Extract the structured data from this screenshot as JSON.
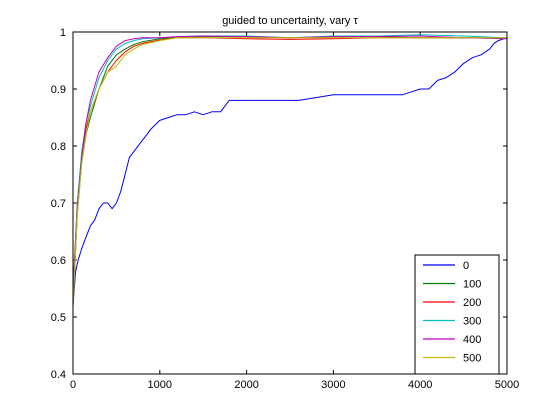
{
  "chart_data": {
    "type": "line",
    "title": "guided to uncertainty, vary τ",
    "xlabel": "",
    "ylabel": "",
    "xlim": [
      0,
      5000
    ],
    "ylim": [
      0.4,
      1.0
    ],
    "xticks": [
      0,
      1000,
      2000,
      3000,
      4000,
      5000
    ],
    "yticks": [
      0.4,
      0.5,
      0.6,
      0.7,
      0.8,
      0.9,
      1.0
    ],
    "xtick_labels": [
      "0",
      "1000",
      "2000",
      "3000",
      "4000",
      "5000"
    ],
    "ytick_labels": [
      "0.4",
      "0.5",
      "0.6",
      "0.7",
      "0.8",
      "0.9",
      "1"
    ],
    "grid": false,
    "legend_position": "bottom-right",
    "series": [
      {
        "name": "0",
        "color": "#0000ff",
        "x": [
          0,
          30,
          60,
          100,
          150,
          200,
          250,
          300,
          350,
          400,
          450,
          500,
          550,
          600,
          650,
          700,
          800,
          900,
          1000,
          1100,
          1200,
          1300,
          1400,
          1500,
          1600,
          1700,
          1800,
          2000,
          2200,
          2400,
          2600,
          2800,
          3000,
          3200,
          3400,
          3600,
          3800,
          3900,
          4000,
          4100,
          4200,
          4300,
          4400,
          4500,
          4600,
          4700,
          4800,
          4850,
          4900,
          5000
        ],
        "y": [
          0.52,
          0.58,
          0.6,
          0.62,
          0.64,
          0.66,
          0.67,
          0.69,
          0.7,
          0.7,
          0.69,
          0.7,
          0.72,
          0.75,
          0.78,
          0.79,
          0.81,
          0.83,
          0.845,
          0.85,
          0.855,
          0.855,
          0.86,
          0.855,
          0.86,
          0.86,
          0.88,
          0.88,
          0.88,
          0.88,
          0.88,
          0.885,
          0.89,
          0.89,
          0.89,
          0.89,
          0.89,
          0.895,
          0.9,
          0.9,
          0.915,
          0.92,
          0.93,
          0.945,
          0.955,
          0.96,
          0.97,
          0.98,
          0.985,
          0.99
        ]
      },
      {
        "name": "100",
        "color": "#008000",
        "x": [
          0,
          50,
          100,
          150,
          200,
          300,
          400,
          500,
          600,
          700,
          800,
          1000,
          1200,
          1500,
          2000,
          2500,
          3000,
          3500,
          4000,
          4500,
          5000
        ],
        "y": [
          0.52,
          0.68,
          0.77,
          0.82,
          0.85,
          0.9,
          0.94,
          0.96,
          0.97,
          0.978,
          0.983,
          0.988,
          0.99,
          0.992,
          0.992,
          0.99,
          0.992,
          0.992,
          0.99,
          0.99,
          0.99
        ]
      },
      {
        "name": "200",
        "color": "#ff0000",
        "x": [
          0,
          50,
          100,
          150,
          200,
          300,
          400,
          500,
          600,
          700,
          800,
          1000,
          1200,
          1500,
          2000,
          2500,
          3000,
          3500,
          4000,
          4500,
          5000
        ],
        "y": [
          0.55,
          0.7,
          0.78,
          0.83,
          0.86,
          0.9,
          0.93,
          0.95,
          0.965,
          0.975,
          0.98,
          0.986,
          0.99,
          0.99,
          0.988,
          0.987,
          0.988,
          0.99,
          0.99,
          0.99,
          0.99
        ]
      },
      {
        "name": "300",
        "color": "#00bfbf",
        "x": [
          0,
          50,
          100,
          150,
          200,
          300,
          400,
          500,
          600,
          700,
          800,
          1000,
          1200,
          1500,
          2000,
          2500,
          3000,
          3500,
          4000,
          4500,
          5000
        ],
        "y": [
          0.53,
          0.7,
          0.79,
          0.84,
          0.87,
          0.92,
          0.95,
          0.97,
          0.98,
          0.985,
          0.988,
          0.99,
          0.992,
          0.993,
          0.993,
          0.99,
          0.993,
          0.993,
          0.995,
          0.993,
          0.99
        ]
      },
      {
        "name": "400",
        "color": "#bf00bf",
        "x": [
          0,
          50,
          100,
          150,
          200,
          300,
          400,
          500,
          600,
          700,
          800,
          1000,
          1200,
          1500,
          2000,
          2500,
          3000,
          3500,
          4000,
          4500,
          5000
        ],
        "y": [
          0.52,
          0.69,
          0.78,
          0.84,
          0.88,
          0.93,
          0.955,
          0.975,
          0.985,
          0.988,
          0.99,
          0.99,
          0.992,
          0.993,
          0.992,
          0.99,
          0.992,
          0.992,
          0.993,
          0.99,
          0.988
        ]
      },
      {
        "name": "500",
        "color": "#bfbf00",
        "x": [
          0,
          50,
          100,
          150,
          200,
          300,
          400,
          500,
          600,
          700,
          800,
          1000,
          1200,
          1500,
          2000,
          2500,
          3000,
          3500,
          4000,
          4500,
          5000
        ],
        "y": [
          0.52,
          0.68,
          0.77,
          0.82,
          0.86,
          0.9,
          0.93,
          0.94,
          0.96,
          0.97,
          0.978,
          0.985,
          0.99,
          0.99,
          0.99,
          0.99,
          0.99,
          0.99,
          0.99,
          0.99,
          0.99
        ]
      }
    ]
  }
}
